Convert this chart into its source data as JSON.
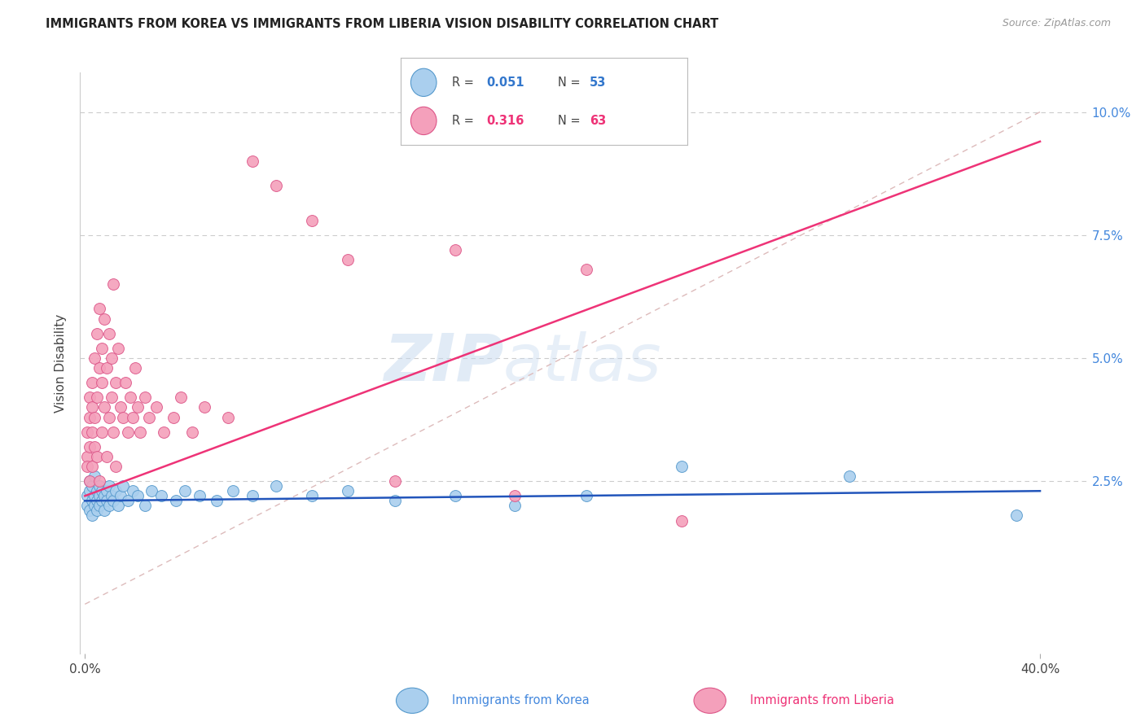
{
  "title": "IMMIGRANTS FROM KOREA VS IMMIGRANTS FROM LIBERIA VISION DISABILITY CORRELATION CHART",
  "source": "Source: ZipAtlas.com",
  "ylabel": "Vision Disability",
  "xlim": [
    -0.002,
    0.42
  ],
  "ylim": [
    -0.01,
    0.108
  ],
  "xlabel_ticks": [
    "0.0%",
    "40.0%"
  ],
  "xlabel_vals": [
    0.0,
    0.4
  ],
  "ylabel_ticks": [
    "2.5%",
    "5.0%",
    "7.5%",
    "10.0%"
  ],
  "ylabel_vals": [
    0.025,
    0.05,
    0.075,
    0.1
  ],
  "grid_lines": [
    0.025,
    0.05,
    0.075,
    0.1
  ],
  "korea_color": "#aacfee",
  "liberia_color": "#f4a0bb",
  "korea_edge": "#5599cc",
  "liberia_edge": "#dd5588",
  "korea_R": "0.051",
  "korea_N": "53",
  "liberia_R": "0.316",
  "liberia_N": "63",
  "korea_line_color": "#2255bb",
  "liberia_line_color": "#ee3377",
  "ref_line_color": "#ddbbbb",
  "watermark_zip": "ZIP",
  "watermark_atlas": "atlas",
  "background_color": "#ffffff",
  "korea_scatter_x": [
    0.001,
    0.001,
    0.002,
    0.002,
    0.002,
    0.003,
    0.003,
    0.003,
    0.004,
    0.004,
    0.004,
    0.005,
    0.005,
    0.005,
    0.006,
    0.006,
    0.006,
    0.007,
    0.007,
    0.008,
    0.008,
    0.009,
    0.009,
    0.01,
    0.01,
    0.011,
    0.012,
    0.013,
    0.014,
    0.015,
    0.016,
    0.018,
    0.02,
    0.022,
    0.025,
    0.028,
    0.032,
    0.038,
    0.042,
    0.048,
    0.055,
    0.062,
    0.07,
    0.08,
    0.095,
    0.11,
    0.13,
    0.155,
    0.18,
    0.21,
    0.25,
    0.32,
    0.39
  ],
  "korea_scatter_y": [
    0.022,
    0.02,
    0.023,
    0.019,
    0.025,
    0.021,
    0.018,
    0.024,
    0.022,
    0.02,
    0.026,
    0.019,
    0.023,
    0.021,
    0.022,
    0.02,
    0.024,
    0.021,
    0.023,
    0.022,
    0.019,
    0.023,
    0.021,
    0.02,
    0.024,
    0.022,
    0.021,
    0.023,
    0.02,
    0.022,
    0.024,
    0.021,
    0.023,
    0.022,
    0.02,
    0.023,
    0.022,
    0.021,
    0.023,
    0.022,
    0.021,
    0.023,
    0.022,
    0.024,
    0.022,
    0.023,
    0.021,
    0.022,
    0.02,
    0.022,
    0.028,
    0.026,
    0.018
  ],
  "liberia_scatter_x": [
    0.001,
    0.001,
    0.001,
    0.002,
    0.002,
    0.002,
    0.002,
    0.003,
    0.003,
    0.003,
    0.003,
    0.004,
    0.004,
    0.004,
    0.005,
    0.005,
    0.005,
    0.006,
    0.006,
    0.006,
    0.007,
    0.007,
    0.007,
    0.008,
    0.008,
    0.009,
    0.009,
    0.01,
    0.01,
    0.011,
    0.011,
    0.012,
    0.012,
    0.013,
    0.013,
    0.014,
    0.015,
    0.016,
    0.017,
    0.018,
    0.019,
    0.02,
    0.021,
    0.022,
    0.023,
    0.025,
    0.027,
    0.03,
    0.033,
    0.037,
    0.04,
    0.045,
    0.05,
    0.06,
    0.07,
    0.08,
    0.095,
    0.11,
    0.13,
    0.155,
    0.18,
    0.21,
    0.25
  ],
  "liberia_scatter_y": [
    0.03,
    0.035,
    0.028,
    0.032,
    0.038,
    0.025,
    0.042,
    0.035,
    0.04,
    0.028,
    0.045,
    0.038,
    0.032,
    0.05,
    0.042,
    0.03,
    0.055,
    0.048,
    0.025,
    0.06,
    0.045,
    0.035,
    0.052,
    0.04,
    0.058,
    0.048,
    0.03,
    0.055,
    0.038,
    0.05,
    0.042,
    0.065,
    0.035,
    0.045,
    0.028,
    0.052,
    0.04,
    0.038,
    0.045,
    0.035,
    0.042,
    0.038,
    0.048,
    0.04,
    0.035,
    0.042,
    0.038,
    0.04,
    0.035,
    0.038,
    0.042,
    0.035,
    0.04,
    0.038,
    0.09,
    0.085,
    0.078,
    0.07,
    0.025,
    0.072,
    0.022,
    0.068,
    0.017
  ]
}
